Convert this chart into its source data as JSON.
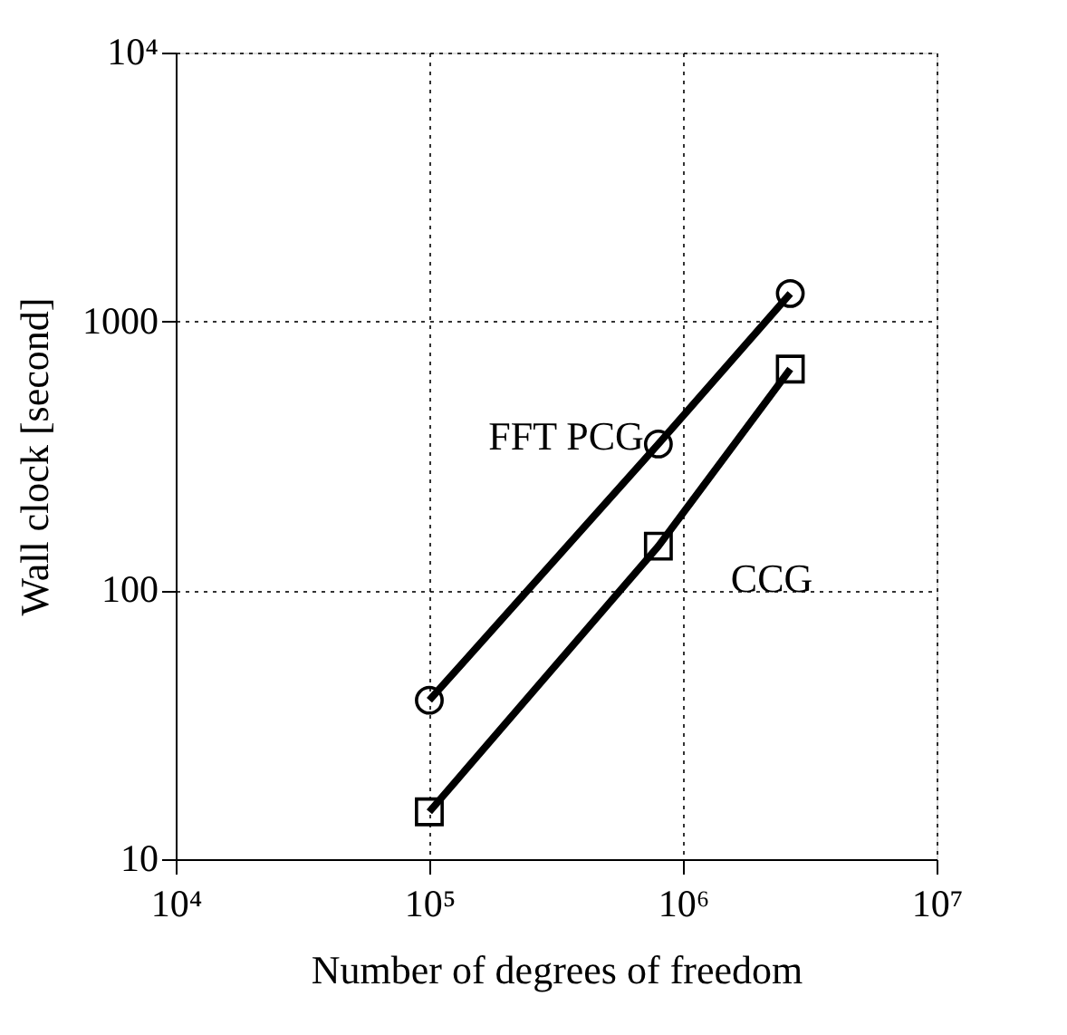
{
  "chart_data": {
    "type": "line",
    "xlabel": "Number of degrees of freedom",
    "ylabel": "Wall clock [second]",
    "log": "xy",
    "grid": true,
    "line_style": "solid",
    "xlim": [
      10000,
      10000000
    ],
    "ylim": [
      10,
      10000
    ],
    "xticks": [
      {
        "value": 10000,
        "label": "10⁴"
      },
      {
        "value": 100000,
        "label": "10⁵"
      },
      {
        "value": 1000000,
        "label": "10⁶"
      },
      {
        "value": 10000000,
        "label": "10⁷"
      }
    ],
    "yticks": [
      10,
      100,
      1000,
      {
        "value": 10000,
        "label": "10⁴"
      }
    ],
    "series": [
      {
        "name": "FFT PCG",
        "color": "#000000",
        "marker": "circle",
        "x": [
          100000,
          800000,
          2650000
        ],
        "values": [
          39,
          350,
          1270
        ]
      },
      {
        "name": "CCG",
        "color": "#000000",
        "marker": "square",
        "x": [
          100000,
          800000,
          2650000
        ],
        "values": [
          15,
          146,
          665
        ]
      }
    ]
  }
}
